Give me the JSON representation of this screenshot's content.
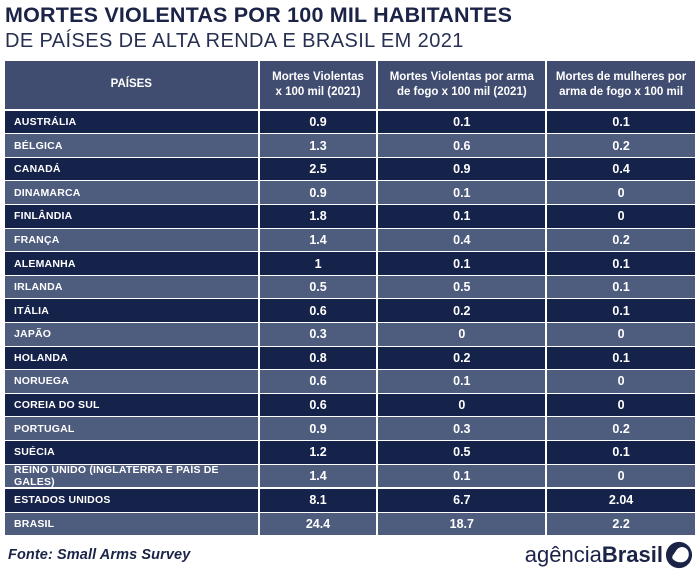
{
  "title": {
    "line1": "MORTES VIOLENTAS POR 100 MIL HABITANTES",
    "line2": "DE PAÍSES DE ALTA RENDA E BRASIL EM 2021"
  },
  "table": {
    "headers": [
      "PAÍSES",
      "Mortes Violentas\nx 100 mil (2021)",
      "Mortes Violentas por arma\nde fogo x 100 mil (2021)",
      "Mortes de mulheres por\narma de fogo x 100 mil"
    ]
  },
  "footer": {
    "source": "Fonte: Small Arms Survey",
    "logo_text_regular": "agência",
    "logo_text_bold": "Brasil",
    "logo_icon": "agencia-brasil-circle-icon"
  },
  "colors": {
    "title_text": "#1b2347",
    "header_bg": "#414d70",
    "row_dark_bg": "#15224a",
    "row_light_bg": "#4e5c7e",
    "cell_text": "#ffffff",
    "divider": "#ffffff"
  },
  "chart_data": {
    "type": "table",
    "title": "MORTES VIOLENTAS POR 100 MIL HABITANTES DE PAÍSES DE ALTA RENDA E BRASIL EM 2021",
    "columns": [
      "PAÍSES",
      "Mortes Violentas x 100 mil (2021)",
      "Mortes Violentas por arma de fogo x 100 mil (2021)",
      "Mortes de mulheres por arma de fogo x 100 mil"
    ],
    "rows": [
      [
        "AUSTRÁLIA",
        0.9,
        0.1,
        0.1
      ],
      [
        "BÉLGICA",
        1.3,
        0.6,
        0.2
      ],
      [
        "CANADÁ",
        2.5,
        0.9,
        0.4
      ],
      [
        "DINAMARCA",
        0.9,
        0.1,
        0
      ],
      [
        "FINLÂNDIA",
        1.8,
        0.1,
        0
      ],
      [
        "FRANÇA",
        1.4,
        0.4,
        0.2
      ],
      [
        "ALEMANHA",
        1,
        0.1,
        0.1
      ],
      [
        "IRLANDA",
        0.5,
        0.5,
        0.1
      ],
      [
        "ITÁLIA",
        0.6,
        0.2,
        0.1
      ],
      [
        "JAPÃO",
        0.3,
        0,
        0
      ],
      [
        "HOLANDA",
        0.8,
        0.2,
        0.1
      ],
      [
        "NORUEGA",
        0.6,
        0.1,
        0
      ],
      [
        "COREIA DO SUL",
        0.6,
        0,
        0
      ],
      [
        "PORTUGAL",
        0.9,
        0.3,
        0.2
      ],
      [
        "SUÉCIA",
        1.2,
        0.5,
        0.1
      ],
      [
        "REINO UNIDO (INGLATERRA E PAÍS DE GALES)",
        1.4,
        0.1,
        0
      ],
      [
        "ESTADOS UNIDOS",
        8.1,
        6.7,
        2.04
      ],
      [
        "BRASIL",
        24.4,
        18.7,
        2.2
      ]
    ],
    "source": "Fonte: Small Arms Survey",
    "layout": "zebra-striped table, dark/light alternating navy rows, white dividers, thicker divider above ESTADOS UNIDOS row"
  }
}
